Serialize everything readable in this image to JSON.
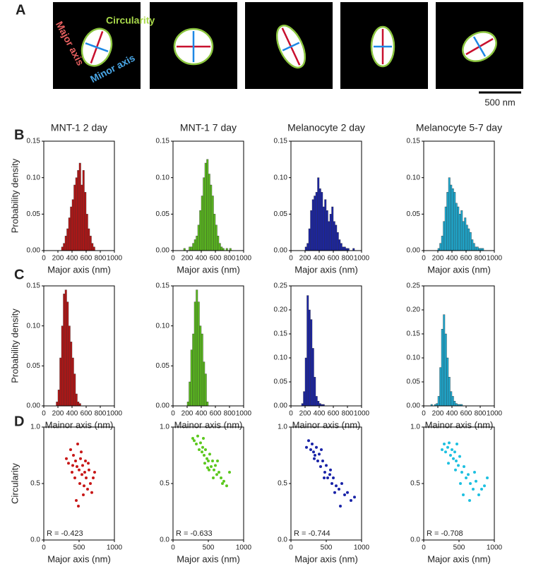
{
  "panel_letters": [
    "A",
    "B",
    "C",
    "D"
  ],
  "panel_a": {
    "circularity": "Circularity",
    "major_axis": "Major axis",
    "minor_axis": "Minor axis",
    "scale_bar": "500 nm"
  },
  "chart_data": [
    {
      "type": "histogram",
      "title": "MNT-1  2 day",
      "xlabel": "Major axis (nm)",
      "ylabel": "Probability density",
      "color": "#b81414",
      "bins": [
        250,
        275,
        300,
        325,
        350,
        375,
        400,
        425,
        450,
        475,
        500,
        525,
        550,
        575,
        600,
        625,
        650,
        675,
        700,
        725
      ],
      "values": [
        0.005,
        0.01,
        0.02,
        0.03,
        0.045,
        0.06,
        0.07,
        0.09,
        0.1,
        0.11,
        0.12,
        0.09,
        0.11,
        0.08,
        0.05,
        0.03,
        0.02,
        0.01,
        0.005
      ],
      "xlim": [
        0,
        1000
      ],
      "xticks": [
        0,
        200,
        400,
        600,
        800,
        1000
      ],
      "ylim": [
        0,
        0.15
      ],
      "yticks": [
        {
          "value": 0,
          "label": "0.00"
        },
        {
          "value": 0.05,
          "label": "0.05"
        },
        {
          "value": 0.1,
          "label": "0.10"
        },
        {
          "value": 0.15,
          "label": "0.15"
        }
      ]
    },
    {
      "type": "histogram",
      "title": "MNT-1  7 day",
      "xlabel": "Major axis (nm)",
      "color": "#5cbf1e",
      "bins": [
        150,
        175,
        200,
        225,
        250,
        275,
        300,
        325,
        350,
        375,
        400,
        425,
        450,
        475,
        500,
        525,
        550,
        575,
        600,
        625,
        650,
        675,
        700,
        725,
        750,
        775,
        800,
        825
      ],
      "values": [
        0.003,
        0,
        0,
        0.005,
        0.005,
        0.01,
        0.015,
        0.02,
        0.035,
        0.055,
        0.075,
        0.1,
        0.12,
        0.125,
        0.105,
        0.09,
        0.075,
        0.05,
        0.035,
        0.02,
        0.01,
        0.005,
        0.003,
        0,
        0.003,
        0,
        0.003
      ],
      "xlim": [
        0,
        1000
      ],
      "xticks": [
        0,
        200,
        400,
        600,
        800,
        1000
      ],
      "ylim": [
        0,
        0.15
      ],
      "yticks": [
        {
          "value": 0,
          "label": "0.00"
        },
        {
          "value": 0.05,
          "label": "0.05"
        },
        {
          "value": 0.1,
          "label": "0.10"
        },
        {
          "value": 0.15,
          "label": "0.15"
        }
      ]
    },
    {
      "type": "histogram",
      "title": "Melanocyte  2 day",
      "xlabel": "Major axis (nm)",
      "color": "#1a24a8",
      "bins": [
        200,
        225,
        250,
        275,
        300,
        325,
        350,
        375,
        400,
        425,
        450,
        475,
        500,
        525,
        550,
        575,
        600,
        625,
        650,
        675,
        700,
        725,
        750,
        775,
        800,
        825,
        850,
        875,
        900
      ],
      "values": [
        0.005,
        0.01,
        0.03,
        0.055,
        0.07,
        0.075,
        0.08,
        0.1,
        0.085,
        0.08,
        0.06,
        0.07,
        0.055,
        0.04,
        0.05,
        0.06,
        0.04,
        0.035,
        0.025,
        0.015,
        0.01,
        0.005,
        0.005,
        0.003,
        0.003,
        0,
        0,
        0.003
      ],
      "xlim": [
        0,
        1000
      ],
      "xticks": [
        0,
        200,
        400,
        600,
        800,
        1000
      ],
      "ylim": [
        0,
        0.15
      ],
      "yticks": [
        {
          "value": 0,
          "label": "0.00"
        },
        {
          "value": 0.05,
          "label": "0.05"
        },
        {
          "value": 0.1,
          "label": "0.10"
        },
        {
          "value": 0.15,
          "label": "0.15"
        }
      ]
    },
    {
      "type": "histogram",
      "title": "Melanocyte  5-7 day",
      "xlabel": "Major axis (nm)",
      "color": "#1eaed6",
      "bins": [
        200,
        225,
        250,
        275,
        300,
        325,
        350,
        375,
        400,
        425,
        450,
        475,
        500,
        525,
        550,
        575,
        600,
        625,
        650,
        675,
        700,
        725,
        750,
        775,
        800,
        825,
        850,
        875,
        900
      ],
      "values": [
        0.003,
        0.01,
        0.02,
        0.04,
        0.06,
        0.08,
        0.1,
        0.09,
        0.085,
        0.08,
        0.065,
        0.06,
        0.05,
        0.055,
        0.04,
        0.045,
        0.035,
        0.03,
        0.025,
        0.015,
        0.01,
        0.005,
        0.005,
        0.003,
        0.003,
        0.003,
        0,
        0
      ],
      "xlim": [
        0,
        1000
      ],
      "xticks": [
        0,
        200,
        400,
        600,
        800,
        1000
      ],
      "ylim": [
        0,
        0.15
      ],
      "yticks": [
        {
          "value": 0,
          "label": "0.00"
        },
        {
          "value": 0.05,
          "label": "0.05"
        },
        {
          "value": 0.1,
          "label": "0.10"
        },
        {
          "value": 0.15,
          "label": "0.15"
        }
      ]
    },
    {
      "type": "histogram",
      "xlabel": "Mainor axis (nm)",
      "ylabel": "Probability density",
      "color": "#b81414",
      "bins": [
        175,
        200,
        225,
        250,
        275,
        300,
        325,
        350,
        375,
        400,
        425,
        450,
        475,
        500,
        525
      ],
      "values": [
        0.005,
        0.02,
        0.06,
        0.1,
        0.14,
        0.145,
        0.13,
        0.1,
        0.08,
        0.06,
        0.04,
        0.015,
        0.005,
        0.003
      ],
      "xlim": [
        0,
        1000
      ],
      "xticks": [
        0,
        200,
        400,
        600,
        800,
        1000
      ],
      "ylim": [
        0,
        0.15
      ],
      "yticks": [
        {
          "value": 0,
          "label": "0.00"
        },
        {
          "value": 0.05,
          "label": "0.05"
        },
        {
          "value": 0.1,
          "label": "0.10"
        },
        {
          "value": 0.15,
          "label": "0.15"
        }
      ]
    },
    {
      "type": "histogram",
      "xlabel": "Mainor axis (nm)",
      "color": "#5cbf1e",
      "bins": [
        200,
        225,
        250,
        275,
        300,
        325,
        350,
        375,
        400,
        425,
        450,
        475,
        500
      ],
      "values": [
        0.005,
        0.03,
        0.07,
        0.09,
        0.13,
        0.145,
        0.13,
        0.1,
        0.09,
        0.055,
        0.04,
        0.005
      ],
      "xlim": [
        0,
        1000
      ],
      "xticks": [
        0,
        200,
        400,
        600,
        800,
        1000
      ],
      "ylim": [
        0,
        0.15
      ],
      "yticks": [
        {
          "value": 0,
          "label": "0.00"
        },
        {
          "value": 0.05,
          "label": "0.05"
        },
        {
          "value": 0.1,
          "label": "0.10"
        },
        {
          "value": 0.15,
          "label": "0.15"
        }
      ]
    },
    {
      "type": "histogram",
      "xlabel": "Mainor axis (nm)",
      "color": "#1a24a8",
      "bins": [
        150,
        175,
        200,
        225,
        250,
        275,
        300,
        325,
        350,
        375,
        400,
        425,
        450,
        475,
        500
      ],
      "values": [
        0.005,
        0.03,
        0.1,
        0.23,
        0.2,
        0.18,
        0.12,
        0.06,
        0.02,
        0.01,
        0.005,
        0.003,
        0.003,
        0
      ],
      "xlim": [
        0,
        1000
      ],
      "xticks": [
        0,
        200,
        400,
        600,
        800,
        1000
      ],
      "ylim": [
        0,
        0.25
      ],
      "yticks": [
        {
          "value": 0,
          "label": "0.00"
        },
        {
          "value": 0.05,
          "label": "0.05"
        },
        {
          "value": 0.1,
          "label": "0.10"
        },
        {
          "value": 0.15,
          "label": "0.15"
        },
        {
          "value": 0.2,
          "label": "0.20"
        },
        {
          "value": 0.25,
          "label": "0.25"
        }
      ]
    },
    {
      "type": "histogram",
      "xlabel": "Mainor axis (nm)",
      "color": "#1eaed6",
      "bins": [
        100,
        125,
        150,
        175,
        200,
        225,
        250,
        275,
        300,
        325,
        350,
        375,
        400,
        425,
        450,
        475,
        500,
        525,
        550
      ],
      "values": [
        0.003,
        0,
        0.003,
        0.005,
        0.02,
        0.08,
        0.16,
        0.19,
        0.15,
        0.1,
        0.06,
        0.03,
        0.02,
        0.01,
        0.005,
        0.003,
        0.003,
        0.003
      ],
      "xlim": [
        0,
        1000
      ],
      "xticks": [
        0,
        200,
        400,
        600,
        800,
        1000
      ],
      "ylim": [
        0,
        0.25
      ],
      "yticks": [
        {
          "value": 0,
          "label": "0.00"
        },
        {
          "value": 0.05,
          "label": "0.05"
        },
        {
          "value": 0.1,
          "label": "0.10"
        },
        {
          "value": 0.15,
          "label": "0.15"
        },
        {
          "value": 0.2,
          "label": "0.20"
        },
        {
          "value": 0.25,
          "label": "0.25"
        }
      ]
    },
    {
      "type": "scatter",
      "xlabel": "Major axis (nm)",
      "ylabel": "Circularity",
      "annotation": "R = -0.423",
      "color": "#c81818",
      "x": [
        320,
        350,
        380,
        400,
        420,
        440,
        450,
        470,
        480,
        500,
        510,
        520,
        540,
        550,
        560,
        580,
        600,
        620,
        640,
        660,
        680,
        700,
        460,
        530,
        590,
        410,
        490,
        570,
        630,
        720
      ],
      "y": [
        0.72,
        0.68,
        0.8,
        0.6,
        0.75,
        0.55,
        0.7,
        0.65,
        0.85,
        0.62,
        0.5,
        0.72,
        0.58,
        0.66,
        0.4,
        0.6,
        0.55,
        0.45,
        0.62,
        0.5,
        0.42,
        0.55,
        0.35,
        0.78,
        0.7,
        0.66,
        0.3,
        0.48,
        0.68,
        0.6
      ],
      "xlim": [
        0,
        1000
      ],
      "xticks": [
        0,
        500,
        1000
      ],
      "ylim": [
        0,
        1
      ],
      "yticks": [
        {
          "value": 0,
          "label": "0.0"
        },
        {
          "value": 0.5,
          "label": "0.5"
        },
        {
          "value": 1,
          "label": "1.0"
        }
      ]
    },
    {
      "type": "scatter",
      "xlabel": "Major axis (nm)",
      "annotation": "R = -0.633",
      "color": "#5cc81e",
      "x": [
        280,
        300,
        330,
        350,
        370,
        390,
        410,
        420,
        440,
        460,
        480,
        500,
        520,
        540,
        560,
        580,
        600,
        620,
        650,
        680,
        700,
        720,
        760,
        800,
        450,
        510,
        570,
        630,
        430,
        490
      ],
      "y": [
        0.9,
        0.88,
        0.85,
        0.92,
        0.8,
        0.86,
        0.78,
        0.82,
        0.75,
        0.8,
        0.72,
        0.7,
        0.76,
        0.65,
        0.7,
        0.62,
        0.66,
        0.58,
        0.6,
        0.55,
        0.5,
        0.52,
        0.48,
        0.6,
        0.68,
        0.62,
        0.55,
        0.7,
        0.9,
        0.64
      ],
      "xlim": [
        0,
        1000
      ],
      "xticks": [
        0,
        500,
        1000
      ],
      "ylim": [
        0,
        1
      ],
      "yticks": [
        {
          "value": 0,
          "label": "0.0"
        },
        {
          "value": 0.5,
          "label": "0.5"
        },
        {
          "value": 1,
          "label": "1.0"
        }
      ]
    },
    {
      "type": "scatter",
      "xlabel": "Major axis (nm)",
      "annotation": "R = -0.744",
      "color": "#1a24a8",
      "x": [
        220,
        250,
        280,
        300,
        320,
        340,
        360,
        380,
        400,
        420,
        450,
        480,
        500,
        520,
        550,
        580,
        600,
        640,
        680,
        720,
        760,
        800,
        850,
        900,
        330,
        430,
        470,
        560,
        620,
        700
      ],
      "y": [
        0.82,
        0.88,
        0.8,
        0.85,
        0.78,
        0.75,
        0.82,
        0.7,
        0.76,
        0.65,
        0.7,
        0.6,
        0.66,
        0.55,
        0.58,
        0.5,
        0.55,
        0.48,
        0.45,
        0.5,
        0.4,
        0.42,
        0.35,
        0.38,
        0.72,
        0.8,
        0.55,
        0.62,
        0.42,
        0.3
      ],
      "xlim": [
        0,
        1000
      ],
      "xticks": [
        0,
        500,
        1000
      ],
      "ylim": [
        0,
        1
      ],
      "yticks": [
        {
          "value": 0,
          "label": "0.0"
        },
        {
          "value": 0.5,
          "label": "0.5"
        },
        {
          "value": 1,
          "label": "1.0"
        }
      ]
    },
    {
      "type": "scatter",
      "xlabel": "Major axis (nm)",
      "annotation": "R = -0.708",
      "color": "#1ec0e0",
      "x": [
        260,
        290,
        310,
        340,
        360,
        380,
        400,
        420,
        440,
        460,
        490,
        510,
        540,
        570,
        600,
        630,
        660,
        700,
        740,
        780,
        820,
        860,
        900,
        350,
        450,
        520,
        560,
        650,
        720,
        470
      ],
      "y": [
        0.8,
        0.85,
        0.78,
        0.82,
        0.86,
        0.75,
        0.8,
        0.72,
        0.78,
        0.7,
        0.66,
        0.74,
        0.6,
        0.65,
        0.55,
        0.58,
        0.5,
        0.45,
        0.52,
        0.4,
        0.45,
        0.48,
        0.55,
        0.68,
        0.62,
        0.5,
        0.4,
        0.35,
        0.6,
        0.85
      ],
      "xlim": [
        0,
        1000
      ],
      "xticks": [
        0,
        500,
        1000
      ],
      "ylim": [
        0,
        1
      ],
      "yticks": [
        {
          "value": 0,
          "label": "0.0"
        },
        {
          "value": 0.5,
          "label": "0.5"
        },
        {
          "value": 1,
          "label": "1.0"
        }
      ]
    }
  ]
}
